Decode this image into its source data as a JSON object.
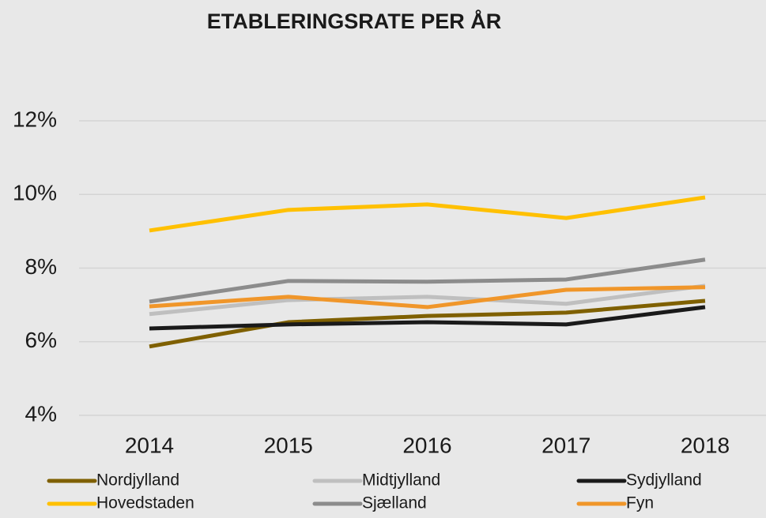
{
  "chart_data": {
    "type": "line",
    "title": "ETABLERINGSRATE PER ÅR",
    "categories": [
      "2014",
      "2015",
      "2016",
      "2017",
      "2018"
    ],
    "series": [
      {
        "name": "Nordjylland",
        "color": "#7f6000",
        "values": [
          5.87,
          6.53,
          6.7,
          6.79,
          7.11
        ]
      },
      {
        "name": "Midtjylland",
        "color": "#bfbfbf",
        "values": [
          6.75,
          7.13,
          7.22,
          7.03,
          7.52
        ]
      },
      {
        "name": "Sydjylland",
        "color": "#1a1a1a",
        "values": [
          6.36,
          6.47,
          6.53,
          6.47,
          6.94
        ]
      },
      {
        "name": "Hovedstaden",
        "color": "#ffc000",
        "values": [
          9.02,
          9.58,
          9.73,
          9.36,
          9.92
        ]
      },
      {
        "name": "Sjælland",
        "color": "#8c8c8c",
        "values": [
          7.09,
          7.65,
          7.63,
          7.69,
          8.23
        ]
      },
      {
        "name": "Fyn",
        "color": "#f0962a",
        "values": [
          6.96,
          7.22,
          6.94,
          7.41,
          7.48
        ]
      }
    ],
    "ylim": [
      4,
      12
    ],
    "yticks": [
      {
        "value": 4,
        "label": "4%"
      },
      {
        "value": 6,
        "label": "6%"
      },
      {
        "value": 8,
        "label": "8%"
      },
      {
        "value": 10,
        "label": "10%"
      },
      {
        "value": 12,
        "label": "12%"
      }
    ],
    "grid": true,
    "legend": "bottom"
  }
}
